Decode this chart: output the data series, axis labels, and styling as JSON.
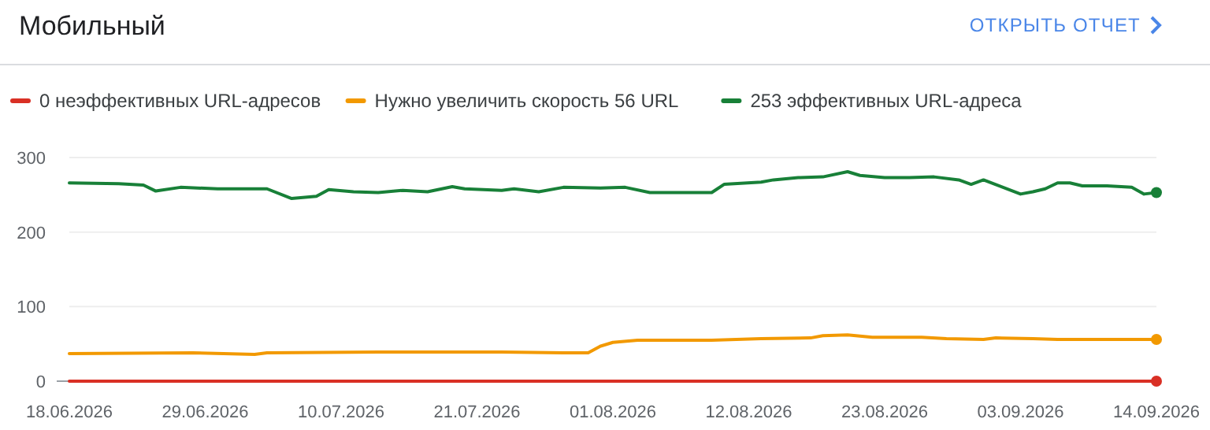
{
  "chart_data": {
    "type": "line",
    "title": "Мобильный",
    "annotations": [
      "ОТКРЫТЬ ОТЧЕТ"
    ],
    "xlim": [
      "2026-06-18",
      "2026-09-14"
    ],
    "xticks": [
      {
        "value": "2026-06-18",
        "label": "18.06.2026"
      },
      {
        "value": "2026-06-29",
        "label": "29.06.2026"
      },
      {
        "value": "2026-07-10",
        "label": "10.07.2026"
      },
      {
        "value": "2026-07-21",
        "label": "21.07.2026"
      },
      {
        "value": "2026-08-01",
        "label": "01.08.2026"
      },
      {
        "value": "2026-08-12",
        "label": "12.08.2026"
      },
      {
        "value": "2026-08-23",
        "label": "23.08.2026"
      },
      {
        "value": "2026-09-03",
        "label": "03.09.2026"
      },
      {
        "value": "2026-09-14",
        "label": "14.09.2026"
      }
    ],
    "ylim": [
      0,
      300
    ],
    "yticks": [
      0,
      100,
      200,
      300
    ],
    "grid": "y",
    "legend": "top left",
    "series": [
      {
        "name": "0 неэффективных URL-адресов",
        "color": "#d93025",
        "x": [
          "2026-06-18",
          "2026-09-14"
        ],
        "values": [
          0,
          0
        ]
      },
      {
        "name": "Нужно увеличить скорость 56 URL",
        "color": "#f29900",
        "x": [
          "2026-06-18",
          "2026-06-28",
          "2026-07-03",
          "2026-07-04",
          "2026-07-13",
          "2026-07-23",
          "2026-07-28",
          "2026-07-30",
          "2026-07-31",
          "2026-08-01",
          "2026-08-03",
          "2026-08-09",
          "2026-08-13",
          "2026-08-17",
          "2026-08-18",
          "2026-08-20",
          "2026-08-22",
          "2026-08-26",
          "2026-08-28",
          "2026-08-31",
          "2026-09-01",
          "2026-09-04",
          "2026-09-06",
          "2026-09-14"
        ],
        "values": [
          37,
          38,
          36,
          38,
          39,
          39,
          38,
          38,
          47,
          52,
          55,
          55,
          57,
          58,
          61,
          62,
          59,
          59,
          57,
          56,
          58,
          57,
          56,
          56
        ]
      },
      {
        "name": "253 эффективных URL-адреса",
        "color": "#188038",
        "x": [
          "2026-06-18",
          "2026-06-22",
          "2026-06-24",
          "2026-06-25",
          "2026-06-27",
          "2026-06-30",
          "2026-07-04",
          "2026-07-06",
          "2026-07-08",
          "2026-07-09",
          "2026-07-11",
          "2026-07-13",
          "2026-07-15",
          "2026-07-17",
          "2026-07-19",
          "2026-07-20",
          "2026-07-23",
          "2026-07-24",
          "2026-07-26",
          "2026-07-28",
          "2026-07-31",
          "2026-08-02",
          "2026-08-04",
          "2026-08-09",
          "2026-08-10",
          "2026-08-13",
          "2026-08-14",
          "2026-08-16",
          "2026-08-18",
          "2026-08-20",
          "2026-08-21",
          "2026-08-23",
          "2026-08-25",
          "2026-08-27",
          "2026-08-29",
          "2026-08-30",
          "2026-08-31",
          "2026-09-03",
          "2026-09-04",
          "2026-09-05",
          "2026-09-06",
          "2026-09-07",
          "2026-09-08",
          "2026-09-10",
          "2026-09-12",
          "2026-09-13",
          "2026-09-14"
        ],
        "values": [
          266,
          265,
          263,
          255,
          260,
          258,
          258,
          245,
          248,
          257,
          254,
          253,
          256,
          254,
          261,
          258,
          256,
          258,
          254,
          260,
          259,
          260,
          253,
          253,
          264,
          267,
          270,
          273,
          274,
          281,
          276,
          273,
          273,
          274,
          270,
          264,
          270,
          251,
          254,
          258,
          266,
          266,
          262,
          262,
          260,
          251,
          253
        ]
      }
    ]
  }
}
